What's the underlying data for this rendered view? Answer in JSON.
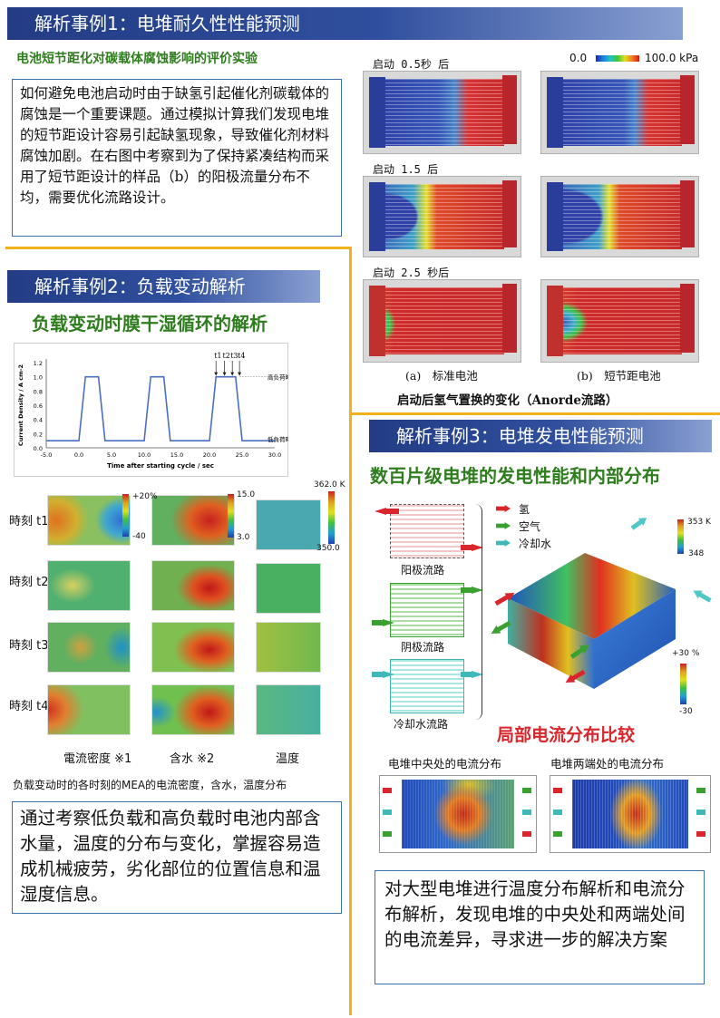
{
  "case1": {
    "banner": "解析事例1：电堆耐久性性能预测",
    "subtitle": "电池短节距化对碳载体腐蚀影响的评价实验",
    "paragraph": "如何避免电池启动时由于缺氢引起催化剂碳载体的腐蚀是一个重要课题。通过模拟计算我们发现电堆的短节距设计容易引起缺氢现象，导致催化剂材料腐蚀加剧。在右图中考察到为了保持紧凑结构而采用了短节距设计的样品（b）的阳极流量分布不均，需要优化流路设计。",
    "colorbar_min": "0.0",
    "colorbar_max": "100.0 kPa",
    "time_labels": [
      "启动 0.5秒 后",
      "启动 1.5 后",
      "启动 2.5 秒后"
    ],
    "col_a": "(a)　标准电池",
    "col_b": "(b)　短节距电池",
    "caption": "启动后氢气置换的变化（Anorde流路）"
  },
  "case2": {
    "banner": "解析事例2：负载变动解析",
    "subtitle": "负载变动时膜干湿循环的解析",
    "chart_data": {
      "type": "line",
      "xlabel": "Time after starting cycle / sec",
      "ylabel": "Current Density / A cm-2",
      "xlim": [
        -5,
        30
      ],
      "ylim": [
        0,
        1.2
      ],
      "xticks": [
        "-5.0",
        "0.0",
        "5.0",
        "10.0",
        "15.0",
        "20.0",
        "25.0",
        "30.0"
      ],
      "yticks": [
        "0.0",
        "0.2",
        "0.4",
        "0.6",
        "0.8",
        "1.0",
        "1.2"
      ],
      "x": [
        -5,
        0,
        1,
        2,
        3,
        4,
        10,
        11,
        12,
        13,
        14,
        20,
        21,
        22,
        24,
        25,
        30
      ],
      "y": [
        0.1,
        0.1,
        1.0,
        1.0,
        1.0,
        0.1,
        0.1,
        1.0,
        1.0,
        1.0,
        0.1,
        0.1,
        1.0,
        1.0,
        1.0,
        0.1,
        0.1
      ],
      "markers": [
        "t1",
        "t2",
        "t3",
        "t4"
      ],
      "marker_x": [
        21.0,
        22.3,
        23.5,
        24.6
      ],
      "high_label": "高负荷時",
      "low_label": "低負荷時"
    },
    "row_labels": [
      "時刻 t1",
      "時刻 t2",
      "時刻 t3",
      "時刻 t4"
    ],
    "col_labels": [
      "電流密度 ※1",
      "含水 ※2",
      "温度"
    ],
    "cbar1": [
      "+20%",
      "-40"
    ],
    "cbar2": [
      "15.0",
      "3.0"
    ],
    "cbar3": [
      "362.0 K",
      "350.0"
    ],
    "caption": "负载变动时的各时刻的MEA的电流密度，含水，温度分布",
    "paragraph": "通过考察低负载和高负载时电池内部含水量，温度的分布与变化，掌握容易造成机械疲劳，劣化部位的位置信息和温湿度信息。"
  },
  "case3": {
    "banner": "解析事例3：电堆发电性能预测",
    "subtitle": "数百片级电堆的发电性能和内部分布",
    "legend": [
      "氢",
      "空气",
      "冷却水"
    ],
    "flow_labels": [
      "阳极流路",
      "阴极流路",
      "冷却水流路"
    ],
    "cbar_temp": [
      "353 K",
      "348"
    ],
    "cbar_current": [
      "+30 %",
      "-30"
    ],
    "compare_title": "局部电流分布比较",
    "center_label": "电堆中央处的电流分布",
    "ends_label": "电堆两端处的电流分布",
    "paragraph": "对大型电堆进行温度分布解析和电流分布解析，发现电堆的中央处和两端处间的电流差异，寻求进一步的解决方案"
  },
  "colors": {
    "banner": "#233c84",
    "gold": "#f0b21a",
    "green_title": "#2e7d1e",
    "red_title": "#d8262c"
  }
}
